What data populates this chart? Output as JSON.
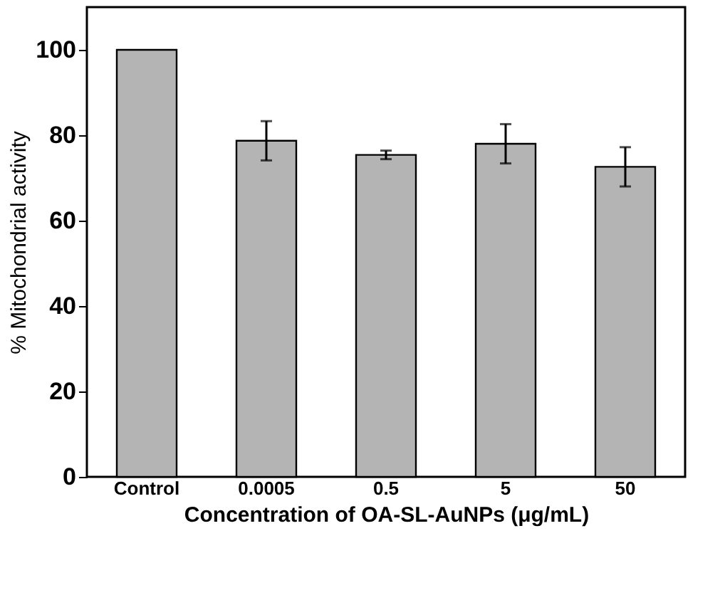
{
  "chart_data": {
    "type": "bar",
    "xlabel": "Concentration of OA-SL-AuNPs (μg/mL)",
    "ylabel": "% Mitochondrial activity",
    "categories": [
      "Control",
      "0.0005",
      "0.5",
      "5",
      "50"
    ],
    "values": [
      100,
      78.7,
      75.4,
      78.0,
      72.6
    ],
    "errors": [
      null,
      4.6,
      1.0,
      4.6,
      4.6
    ],
    "color": "#b4b4b4",
    "ylim": [
      0,
      110
    ],
    "yticks": [
      0,
      20,
      40,
      60,
      80,
      100
    ],
    "grid": false
  }
}
